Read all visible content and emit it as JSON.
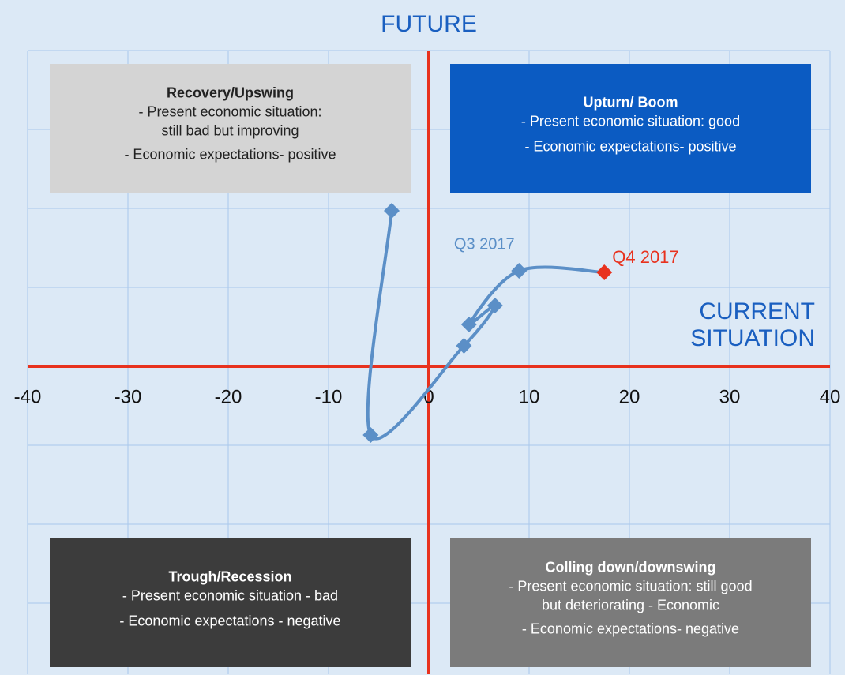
{
  "chart_data": {
    "type": "line",
    "title": "FUTURE",
    "x_label": [
      "CURRENT",
      "SITUATION"
    ],
    "xlim": [
      -40,
      40
    ],
    "xticks": [
      -40,
      -30,
      -20,
      -10,
      0,
      10,
      20,
      30,
      40
    ],
    "ylim": [
      -39,
      40
    ],
    "yticks": [
      -30,
      -20,
      -10,
      0,
      10,
      20,
      30,
      40
    ],
    "ytick_labels": false,
    "grid": true,
    "axis_color": "#e8321e",
    "series": [
      {
        "color": "#5b8fc7",
        "x": [
          -3.7,
          -5.8,
          3.5,
          6.6,
          4.0,
          9.0,
          17.5
        ],
        "y": [
          19.7,
          -8.7,
          2.6,
          7.7,
          5.3,
          12.1,
          11.9
        ]
      }
    ],
    "annotations": [
      {
        "text": "Q3 2017",
        "color": "#5b8fc7"
      },
      {
        "text": "Q4 2017",
        "color": "#e8321e"
      }
    ],
    "quadrants": [
      {
        "title": "Recovery/Upswing",
        "color": "#d4d4d4",
        "text_color": "#222222",
        "lines": [
          "- Present economic situation:",
          "still bad but improving",
          "- Economic expectations- positive"
        ]
      },
      {
        "title": "Upturn/ Boom",
        "color": "#0b5bc2",
        "text_color": "#ffffff",
        "lines": [
          "- Present economic situation: good",
          "- Economic expectations- positive"
        ]
      },
      {
        "title": "Trough/Recession",
        "color": "#3c3c3c",
        "text_color": "#ffffff",
        "lines": [
          "-  Present economic situation - bad",
          "- Economic expectations - negative"
        ]
      },
      {
        "title": "Colling down/downswing",
        "color": "#7b7b7b",
        "text_color": "#ffffff",
        "lines": [
          "- Present economic situation: still good",
          "but deteriorating - Economic",
          "- Economic expectations- negative"
        ]
      }
    ]
  }
}
